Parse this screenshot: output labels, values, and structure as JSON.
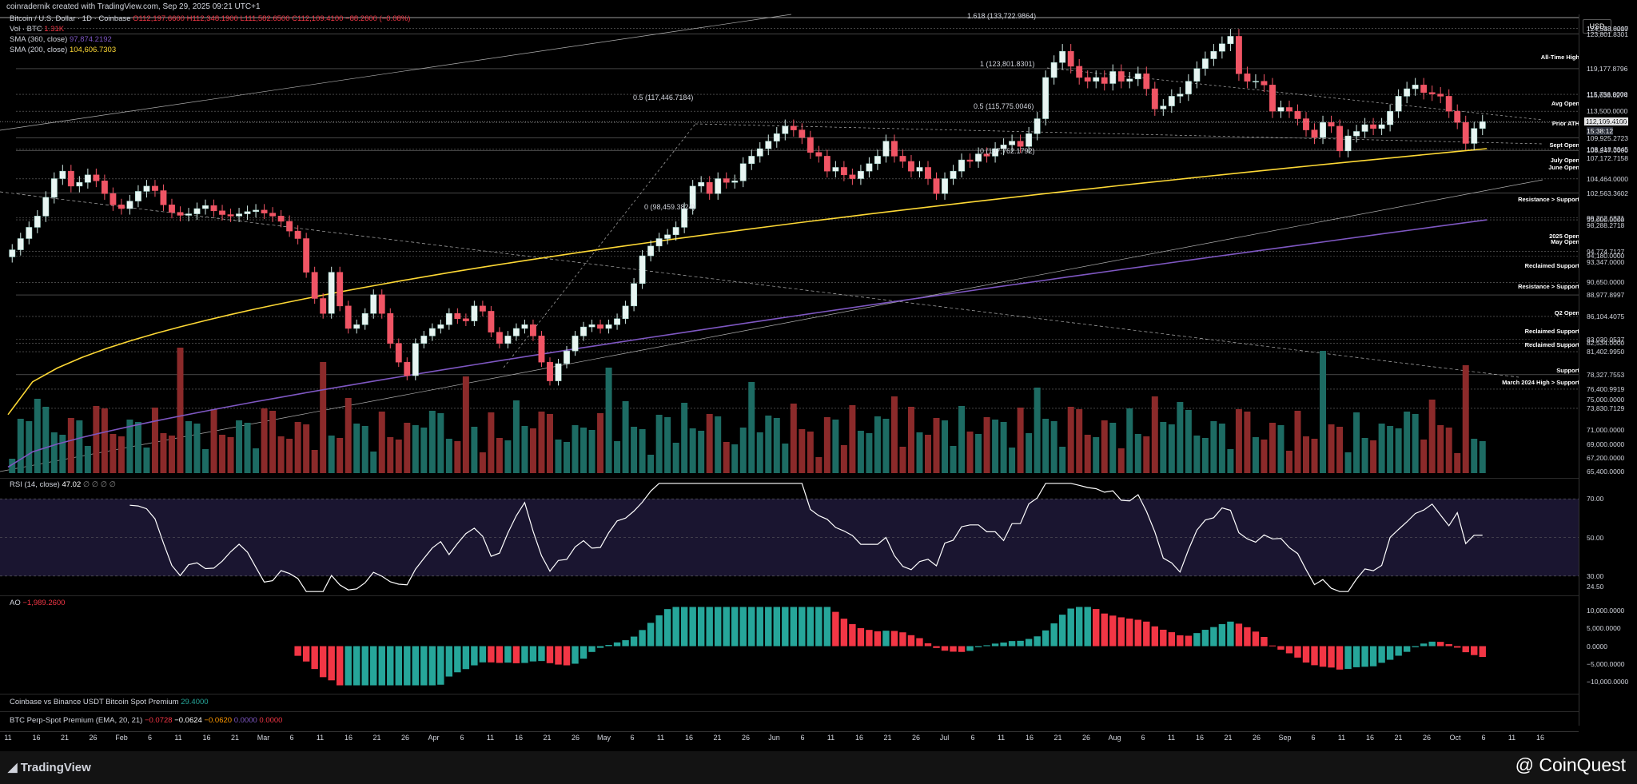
{
  "header": {
    "title_text": "coinradernik created with TradingView.com, Sep 29, 2025 09:21 UTC+1"
  },
  "legend": {
    "symbol": "Bitcoin / U.S. Dollar · 1D · Coinbase",
    "ohlc": "O112,197.6600  H112,348.1900  L111,582.6500  C112,109.4100  −88.2600 (−0.08%)",
    "vol_label": "Vol · BTC",
    "vol_value": "1.31K",
    "sma360_label": "SMA (360, close)",
    "sma360_value": "97,874.2192",
    "sma200_label": "SMA (200, close)",
    "sma200_value": "104,606.7303",
    "rsi_label": "RSI (14, close)",
    "rsi_value": "47.02",
    "rsi_extra": "∅ ∅ ∅ ∅",
    "ao_label": "AO",
    "ao_value": "−1,989.2600",
    "prem1_label": "Coinbase vs Binance USDT Bitcoin Spot Premium",
    "prem1_value": "29.4000",
    "prem2_label": "BTC Perp-Spot Premium (EMA, 20, 21)",
    "prem2_v1": "−0.0728",
    "prem2_v2": "−0.0624",
    "prem2_v3": "−0.0620",
    "prem2_v4": "0.0000",
    "prem2_v5": "0.0000"
  },
  "axis": {
    "currency": "USD",
    "price_ticks": [
      "124,548.8217",
      "124,533.0000",
      "123,801.8301",
      "119,177.8796",
      "115,756.0000",
      "115,638.6274",
      "113,500.0000",
      "112,109.4100",
      "112,000.0000",
      "109,925.2723",
      "108,418.3945",
      "108,247.0000",
      "107,172.7158",
      "104,464.0000",
      "102,563.3602",
      "99,262.6821",
      "99,000.0000",
      "98,288.2718",
      "94,774.7127",
      "94,180.0000",
      "93,347.0000",
      "90,650.0000",
      "88,977.8997",
      "86,104.4075",
      "83,030.0537",
      "82,534.0000",
      "81,402.9950",
      "78,327.7553",
      "76,400.9919",
      "75,000.0000",
      "73,830.7129",
      "71,000.0000",
      "69,000.0000",
      "67,200.0000",
      "65,400.0000"
    ],
    "current_countdown": "15:38:12",
    "rsi_ticks": [
      "70.00",
      "50.00",
      "30.00",
      "24.50"
    ],
    "ao_ticks": [
      "10,000.0000",
      "5,000.0000",
      "0.0000",
      "−5,000.0000",
      "−10,000.0000"
    ],
    "x_ticks": [
      "11",
      "16",
      "21",
      "26",
      "Feb",
      "6",
      "11",
      "16",
      "21",
      "Mar",
      "6",
      "11",
      "16",
      "21",
      "26",
      "Apr",
      "6",
      "11",
      "16",
      "21",
      "26",
      "May",
      "6",
      "11",
      "16",
      "21",
      "26",
      "Jun",
      "6",
      "11",
      "16",
      "21",
      "26",
      "Jul",
      "6",
      "11",
      "16",
      "21",
      "26",
      "Aug",
      "6",
      "11",
      "16",
      "21",
      "26",
      "Sep",
      "6",
      "11",
      "16",
      "21",
      "26",
      "Oct",
      "6",
      "11",
      "16"
    ]
  },
  "levels": {
    "labels": [
      "All-Time High",
      "Avg Open",
      "Prior ATH",
      "Sept Open",
      "July Open",
      "June Open",
      "Resistance > Support",
      "2025 Open",
      "May Open",
      "Reclaimed Support",
      "Resistance > Support",
      "Q2 Open",
      "Reclaimed Support",
      "Reclaimed Support",
      "Support",
      "March 2024 High > Support"
    ],
    "fib_top": "1.618 (133,722.9864)",
    "fib_1": "1 (123,801.8301)",
    "fib_05a": "0.5 (117,446.7184)",
    "fib_05b": "0.5 (115,775.0046)",
    "fib_0a": "0 (107,762.1792)",
    "fib_0b": "0 (98,459.3824)"
  },
  "chart_data": {
    "type": "candlestick",
    "price_range": [
      65400,
      126000
    ],
    "series_close": [
      95000,
      96500,
      98000,
      99500,
      102000,
      104500,
      105500,
      103500,
      104000,
      105000,
      104200,
      102500,
      101000,
      100500,
      101500,
      102800,
      103500,
      102900,
      101000,
      100000,
      99600,
      99800,
      100500,
      100900,
      100200,
      99700,
      99500,
      99800,
      100100,
      100300,
      99900,
      99500,
      98800,
      97500,
      96500,
      92000,
      88500,
      86500,
      92000,
      87500,
      84500,
      85000,
      86500,
      89000,
      86500,
      82500,
      80000,
      78200,
      82500,
      83500,
      84500,
      85000,
      86500,
      85800,
      85500,
      87500,
      86800,
      84000,
      82500,
      83500,
      84500,
      85000,
      83500,
      80000,
      77500,
      79800,
      81500,
      83500,
      84700,
      85000,
      84500,
      85000,
      85800,
      87500,
      90500,
      94200,
      95500,
      96500,
      97000,
      98000,
      100500,
      103500,
      104000,
      102500,
      104500,
      104000,
      104200,
      106500,
      107500,
      108500,
      109500,
      110500,
      111500,
      111000,
      110000,
      108000,
      107500,
      105500,
      106000,
      105000,
      104500,
      105500,
      106500,
      107500,
      109500,
      107500,
      106800,
      105500,
      106000,
      104500,
      102500,
      104500,
      105500,
      107000,
      106800,
      107800,
      107500,
      108500,
      109000,
      109500,
      108800,
      110500,
      112500,
      118000,
      120000,
      121500,
      119500,
      118000,
      117500,
      118000,
      117200,
      118800,
      117500,
      117800,
      118500,
      116500,
      113800,
      114200,
      115500,
      115800,
      117500,
      119200,
      120500,
      121500,
      122500,
      123500,
      118500,
      117500,
      117500,
      117000,
      113500,
      114000,
      113500,
      112500,
      111000,
      110000,
      112000,
      111500,
      108200,
      110200,
      110800,
      111700,
      111200,
      111700,
      113500,
      115500,
      116500,
      117000,
      116000,
      115800,
      115500,
      113500,
      112000,
      109200,
      111200,
      112109
    ],
    "volume_note": "volume histogram at bottom of price pane",
    "sma200_range": [
      73000,
      108500
    ],
    "sma360_range": [
      66000,
      99000
    ],
    "rsi": {
      "range": [
        20,
        80
      ],
      "levels": [
        70,
        50,
        30
      ],
      "last": 47.02
    },
    "ao": {
      "range": [
        -12000,
        12000
      ],
      "last": -1989.26
    }
  },
  "footer": {
    "brand": "TradingView",
    "watermark": "@ CoinQuest"
  }
}
